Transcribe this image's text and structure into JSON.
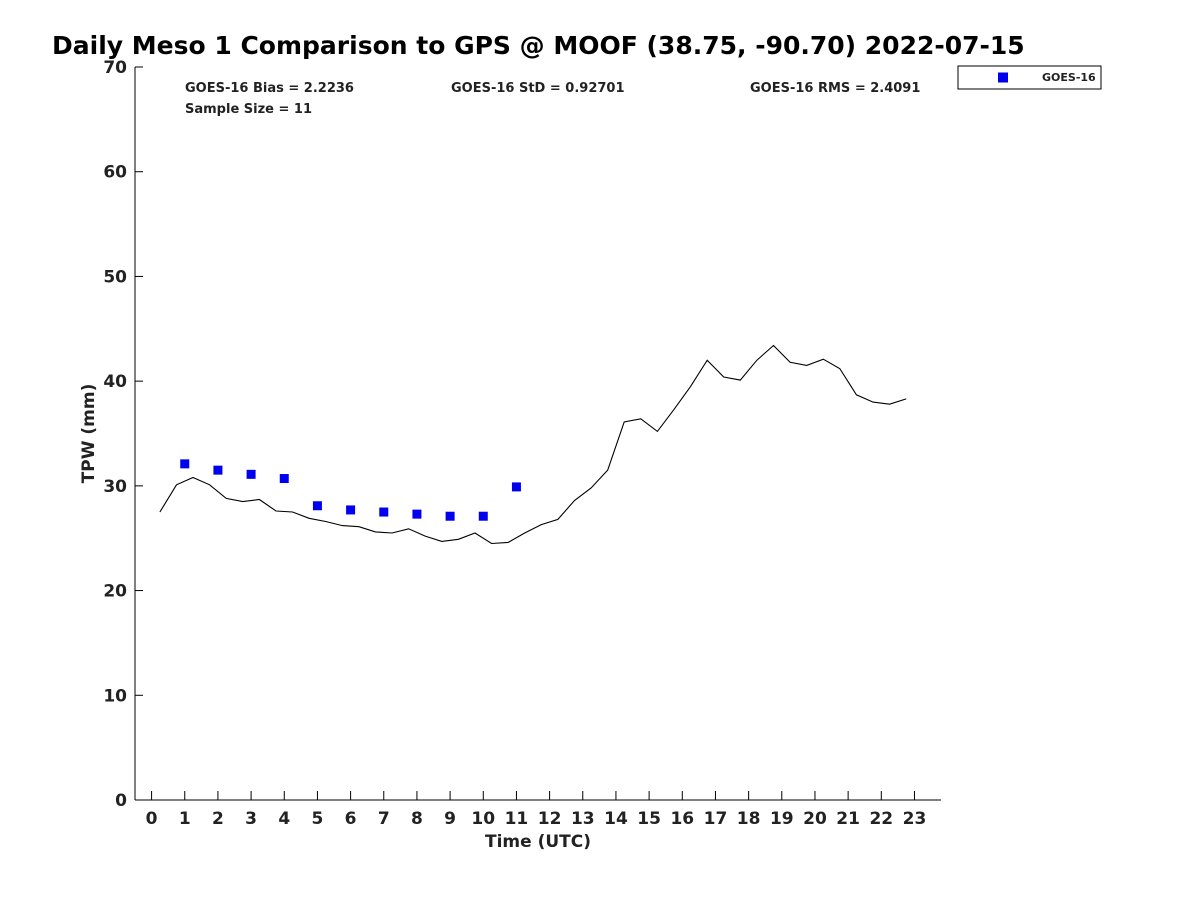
{
  "chart_data": {
    "type": "scatter",
    "title": "Daily Meso 1 Comparison to GPS @ MOOF (38.75, -90.70) 2022-07-15",
    "xlabel": "Time (UTC)",
    "ylabel": "TPW (mm)",
    "xlim": [
      -0.5,
      23.8
    ],
    "ylim": [
      0,
      70
    ],
    "xticks": [
      0,
      1,
      2,
      3,
      4,
      5,
      6,
      7,
      8,
      9,
      10,
      11,
      12,
      13,
      14,
      15,
      16,
      17,
      18,
      19,
      20,
      21,
      22,
      23
    ],
    "yticks": [
      0,
      10,
      20,
      30,
      40,
      50,
      60,
      70
    ],
    "grid": false,
    "legend_position": "top-right outside",
    "stats": {
      "bias": "GOES-16 Bias = 2.2236",
      "std": "GOES-16 StD = 0.92701",
      "rms": "GOES-16 RMS = 2.4091",
      "sample": "Sample Size = 11"
    },
    "series": [
      {
        "name": "GOES-16",
        "kind": "scatter",
        "marker": "square",
        "color": "#0000ee",
        "points": [
          {
            "x": 1.0,
            "y": 32.1
          },
          {
            "x": 2.0,
            "y": 31.5
          },
          {
            "x": 3.0,
            "y": 31.1
          },
          {
            "x": 4.0,
            "y": 30.7
          },
          {
            "x": 5.0,
            "y": 28.1
          },
          {
            "x": 6.0,
            "y": 27.7
          },
          {
            "x": 7.0,
            "y": 27.5
          },
          {
            "x": 8.0,
            "y": 27.3
          },
          {
            "x": 9.0,
            "y": 27.1
          },
          {
            "x": 10.0,
            "y": 27.1
          },
          {
            "x": 11.0,
            "y": 29.9
          }
        ]
      },
      {
        "kind": "line",
        "color": "#000000",
        "points": [
          {
            "x": 0.25,
            "y": 27.5
          },
          {
            "x": 0.75,
            "y": 30.1
          },
          {
            "x": 1.25,
            "y": 30.8
          },
          {
            "x": 1.75,
            "y": 30.1
          },
          {
            "x": 2.25,
            "y": 28.8
          },
          {
            "x": 2.75,
            "y": 28.5
          },
          {
            "x": 3.25,
            "y": 28.7
          },
          {
            "x": 3.75,
            "y": 27.6
          },
          {
            "x": 4.25,
            "y": 27.5
          },
          {
            "x": 4.75,
            "y": 26.9
          },
          {
            "x": 5.25,
            "y": 26.6
          },
          {
            "x": 5.75,
            "y": 26.2
          },
          {
            "x": 6.25,
            "y": 26.1
          },
          {
            "x": 6.75,
            "y": 25.6
          },
          {
            "x": 7.25,
            "y": 25.5
          },
          {
            "x": 7.75,
            "y": 25.9
          },
          {
            "x": 8.25,
            "y": 25.2
          },
          {
            "x": 8.75,
            "y": 24.7
          },
          {
            "x": 9.25,
            "y": 24.9
          },
          {
            "x": 9.75,
            "y": 25.5
          },
          {
            "x": 10.25,
            "y": 24.5
          },
          {
            "x": 10.75,
            "y": 24.6
          },
          {
            "x": 11.25,
            "y": 25.5
          },
          {
            "x": 11.75,
            "y": 26.3
          },
          {
            "x": 12.25,
            "y": 26.8
          },
          {
            "x": 12.75,
            "y": 28.6
          },
          {
            "x": 13.25,
            "y": 29.8
          },
          {
            "x": 13.75,
            "y": 31.5
          },
          {
            "x": 14.25,
            "y": 36.1
          },
          {
            "x": 14.75,
            "y": 36.4
          },
          {
            "x": 15.25,
            "y": 35.2
          },
          {
            "x": 15.75,
            "y": 37.3
          },
          {
            "x": 16.25,
            "y": 39.5
          },
          {
            "x": 16.75,
            "y": 42.0
          },
          {
            "x": 17.25,
            "y": 40.4
          },
          {
            "x": 17.75,
            "y": 40.1
          },
          {
            "x": 18.25,
            "y": 42.0
          },
          {
            "x": 18.75,
            "y": 43.4
          },
          {
            "x": 19.25,
            "y": 41.8
          },
          {
            "x": 19.75,
            "y": 41.5
          },
          {
            "x": 20.25,
            "y": 42.1
          },
          {
            "x": 20.75,
            "y": 41.2
          },
          {
            "x": 21.25,
            "y": 38.7
          },
          {
            "x": 21.75,
            "y": 38.0
          },
          {
            "x": 22.25,
            "y": 37.8
          },
          {
            "x": 22.75,
            "y": 38.3
          }
        ]
      }
    ]
  }
}
